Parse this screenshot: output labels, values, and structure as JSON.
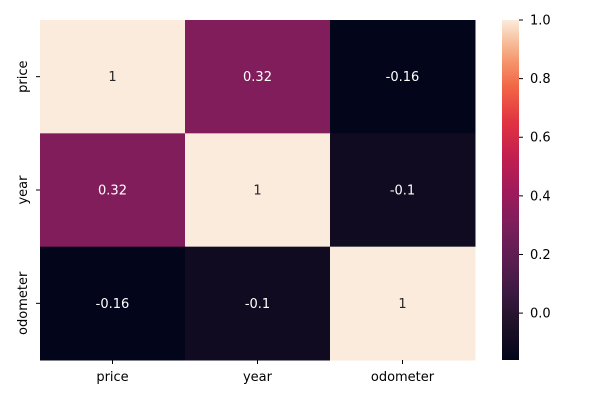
{
  "chart_data": {
    "type": "heatmap",
    "x_labels": [
      "price",
      "year",
      "odometer"
    ],
    "y_labels": [
      "price",
      "year",
      "odometer"
    ],
    "values": [
      [
        1.0,
        0.32,
        -0.16
      ],
      [
        0.32,
        1.0,
        -0.1
      ],
      [
        -0.16,
        -0.1,
        1.0
      ]
    ],
    "annotations": [
      [
        "1",
        "0.32",
        "-0.16"
      ],
      [
        "0.32",
        "1",
        "-0.1"
      ],
      [
        "-0.16",
        "-0.1",
        "1"
      ]
    ],
    "colorbar": {
      "colormap": "rocket",
      "range": [
        -0.16,
        1.0
      ],
      "ticks": [
        0.0,
        0.2,
        0.4,
        0.6,
        0.8,
        1.0
      ],
      "tick_labels": [
        "0.0",
        "0.2",
        "0.4",
        "0.6",
        "0.8",
        "1.0"
      ]
    },
    "annotation_colors": {
      "dark_cell_text": "#ffffff",
      "light_cell_text": "#262626"
    }
  }
}
